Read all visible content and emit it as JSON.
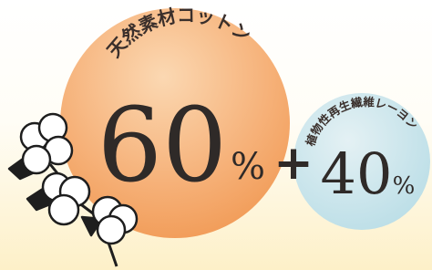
{
  "cotton": {
    "label": "天然素材コットン",
    "value": 60,
    "unit": "%"
  },
  "plus": "+",
  "rayon": {
    "label": "植物性再生繊維レーヨン",
    "value": 40,
    "unit": "%"
  }
}
